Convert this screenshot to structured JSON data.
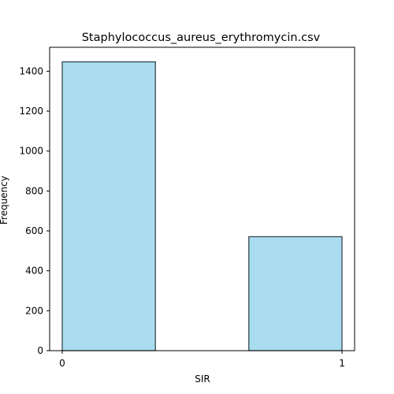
{
  "chart_data": {
    "type": "bar",
    "title": "Staphylococcus_aureus_erythromycin.csv",
    "xlabel": "SIR",
    "ylabel": "Frequency",
    "xlim": [
      -0.045,
      1.045
    ],
    "ylim": [
      0,
      1520
    ],
    "x_ticks": [
      0,
      1
    ],
    "y_ticks": [
      0,
      200,
      400,
      600,
      800,
      1000,
      1200,
      1400
    ],
    "bins": [
      {
        "x_start": 0,
        "x_end": 0.333,
        "value": 1447
      },
      {
        "x_start": 0.667,
        "x_end": 1,
        "value": 571
      }
    ],
    "bar_color": "#a9dcef",
    "edge_color": "#2b3a40",
    "grid": false,
    "legend": "none"
  }
}
